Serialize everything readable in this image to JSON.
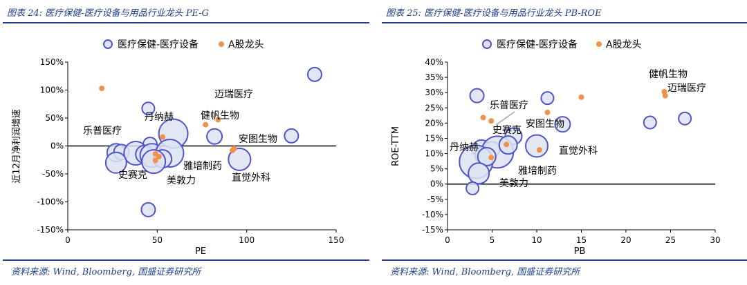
{
  "panels": [
    {
      "title": "图表 24:  医疗保健-医疗设备与用品行业龙头 PE-G",
      "source": "资料来源:  Wind,  Bloomberg,  国盛证券研究所"
    },
    {
      "title": "图表 25:  医疗保健-医疗设备与用品行业龙头 PB-ROE",
      "source": "资料来源:  Wind,  Bloomberg,  国盛证券研究所"
    }
  ],
  "colors": {
    "bubble_fill": "#DDE3F1",
    "bubble_stroke": "#4F55C6",
    "dot": "#F0924B",
    "axis": "#000000",
    "title": "#1F3E8C",
    "connector": "#A6A6A6"
  },
  "chart_data": [
    {
      "type": "scatter",
      "title": "",
      "xlabel": "PE",
      "ylabel": "近12月净利润增速",
      "xlim": [
        0,
        150
      ],
      "ylim": [
        -150,
        150
      ],
      "x_ticks": [
        0,
        50,
        100,
        150
      ],
      "y_ticks": [
        -150,
        -100,
        -50,
        0,
        50,
        100,
        150
      ],
      "y_tick_suffix": "%",
      "legend": {
        "position": "top",
        "entries": [
          "医疗保健-医疗设备",
          "A股龙头"
        ]
      },
      "bubbles": [
        {
          "x": 138,
          "y": 128,
          "r": 10
        },
        {
          "x": 45,
          "y": 67,
          "r": 9
        },
        {
          "x": 59,
          "y": 22,
          "r": 21
        },
        {
          "x": 82,
          "y": 17,
          "r": 11
        },
        {
          "x": 125,
          "y": 18,
          "r": 10
        },
        {
          "x": 46,
          "y": 3,
          "r": 10
        },
        {
          "x": 27,
          "y": -12,
          "r": 13
        },
        {
          "x": 30,
          "y": -11,
          "r": 11
        },
        {
          "x": 38,
          "y": -13,
          "r": 17
        },
        {
          "x": 43,
          "y": -15,
          "r": 13
        },
        {
          "x": 47,
          "y": -17,
          "r": 17
        },
        {
          "x": 57,
          "y": -13,
          "r": 20
        },
        {
          "x": 27,
          "y": -30,
          "r": 15
        },
        {
          "x": 53,
          "y": -23,
          "r": 13
        },
        {
          "x": 48,
          "y": -28,
          "r": 17
        },
        {
          "x": 96,
          "y": -24,
          "r": 16
        },
        {
          "x": 45,
          "y": -114,
          "r": 10
        }
      ],
      "dots": [
        {
          "x": 19,
          "y": 103,
          "label": "乐普医疗"
        },
        {
          "x": 53,
          "y": 16,
          "label": "丹纳赫"
        },
        {
          "x": 77,
          "y": 38,
          "label": "健帆生物"
        },
        {
          "x": 84,
          "y": 47,
          "label": "迈瑞医疗"
        },
        {
          "x": 93,
          "y": -5,
          "label": "安图生物"
        },
        {
          "x": 92,
          "y": -8,
          "label": "直觉外科"
        },
        {
          "x": 49,
          "y": -14,
          "label": "史赛克"
        },
        {
          "x": 51,
          "y": -19,
          "label": "雅培制药"
        },
        {
          "x": 49,
          "y": -26,
          "label": "美敦力"
        }
      ],
      "labels": [
        {
          "text": "迈瑞医疗"
        },
        {
          "text": "健帆生物"
        },
        {
          "text": "丹纳赫"
        },
        {
          "text": "乐普医疗"
        },
        {
          "text": "安图生物"
        },
        {
          "text": "雅培制药"
        },
        {
          "text": "史赛克"
        },
        {
          "text": "美敦力"
        },
        {
          "text": "直觉外科"
        }
      ]
    },
    {
      "type": "scatter",
      "title": "",
      "xlabel": "PB",
      "ylabel": "ROE-TTM",
      "xlim": [
        0,
        30
      ],
      "ylim": [
        -15,
        40
      ],
      "x_ticks": [
        0,
        5,
        10,
        15,
        20,
        25,
        30
      ],
      "y_ticks": [
        -15,
        -10,
        -5,
        0,
        5,
        10,
        15,
        20,
        25,
        30,
        35,
        40
      ],
      "y_tick_suffix": "%",
      "legend": {
        "position": "top",
        "entries": [
          "医疗保健-医疗设备",
          "A股龙头"
        ]
      },
      "bubbles": [
        {
          "x": 3.3,
          "y": 29,
          "r": 10
        },
        {
          "x": 11.2,
          "y": 28.2,
          "r": 9
        },
        {
          "x": 12.9,
          "y": 19.6,
          "r": 11
        },
        {
          "x": 22.7,
          "y": 20.2,
          "r": 9
        },
        {
          "x": 26.6,
          "y": 21.5,
          "r": 9
        },
        {
          "x": 7.4,
          "y": 15.7,
          "r": 12
        },
        {
          "x": 10.0,
          "y": 12.5,
          "r": 16
        },
        {
          "x": 3.8,
          "y": 11.5,
          "r": 13
        },
        {
          "x": 5.0,
          "y": 11.4,
          "r": 11
        },
        {
          "x": 4.0,
          "y": 9.5,
          "r": 12
        },
        {
          "x": 5.6,
          "y": 10.5,
          "r": 23
        },
        {
          "x": 6.8,
          "y": 12.8,
          "r": 13
        },
        {
          "x": 3.2,
          "y": 7.3,
          "r": 24
        },
        {
          "x": 4.4,
          "y": 9.0,
          "r": 13
        },
        {
          "x": 3.5,
          "y": 3.5,
          "r": 15
        },
        {
          "x": 2.8,
          "y": -1.4,
          "r": 9
        }
      ],
      "dots": [
        {
          "x": 24.3,
          "y": 30.3,
          "label": "健帆生物"
        },
        {
          "x": 24.4,
          "y": 29.0,
          "label": "迈瑞医疗"
        },
        {
          "x": 15.0,
          "y": 28.5,
          "label": "安图生物"
        },
        {
          "x": 11.2,
          "y": 23.5,
          "label": "直觉外科"
        },
        {
          "x": 4.0,
          "y": 21.8,
          "label": "乐普医疗"
        },
        {
          "x": 4.9,
          "y": 20.7,
          "label": "史赛克"
        },
        {
          "x": 6.6,
          "y": 13.0,
          "label": "丹纳赫"
        },
        {
          "x": 10.3,
          "y": 11.2,
          "label": "雅培制药"
        },
        {
          "x": 4.9,
          "y": 8.7,
          "label": "美敦力"
        }
      ],
      "labels": [
        {
          "text": "健帆生物"
        },
        {
          "text": "迈瑞医疗"
        },
        {
          "text": "乐普医疗"
        },
        {
          "text": "史赛克"
        },
        {
          "text": "安图生物"
        },
        {
          "text": "丹纳赫"
        },
        {
          "text": "直觉外科"
        },
        {
          "text": "雅培制药"
        },
        {
          "text": "美敦力"
        }
      ]
    }
  ]
}
